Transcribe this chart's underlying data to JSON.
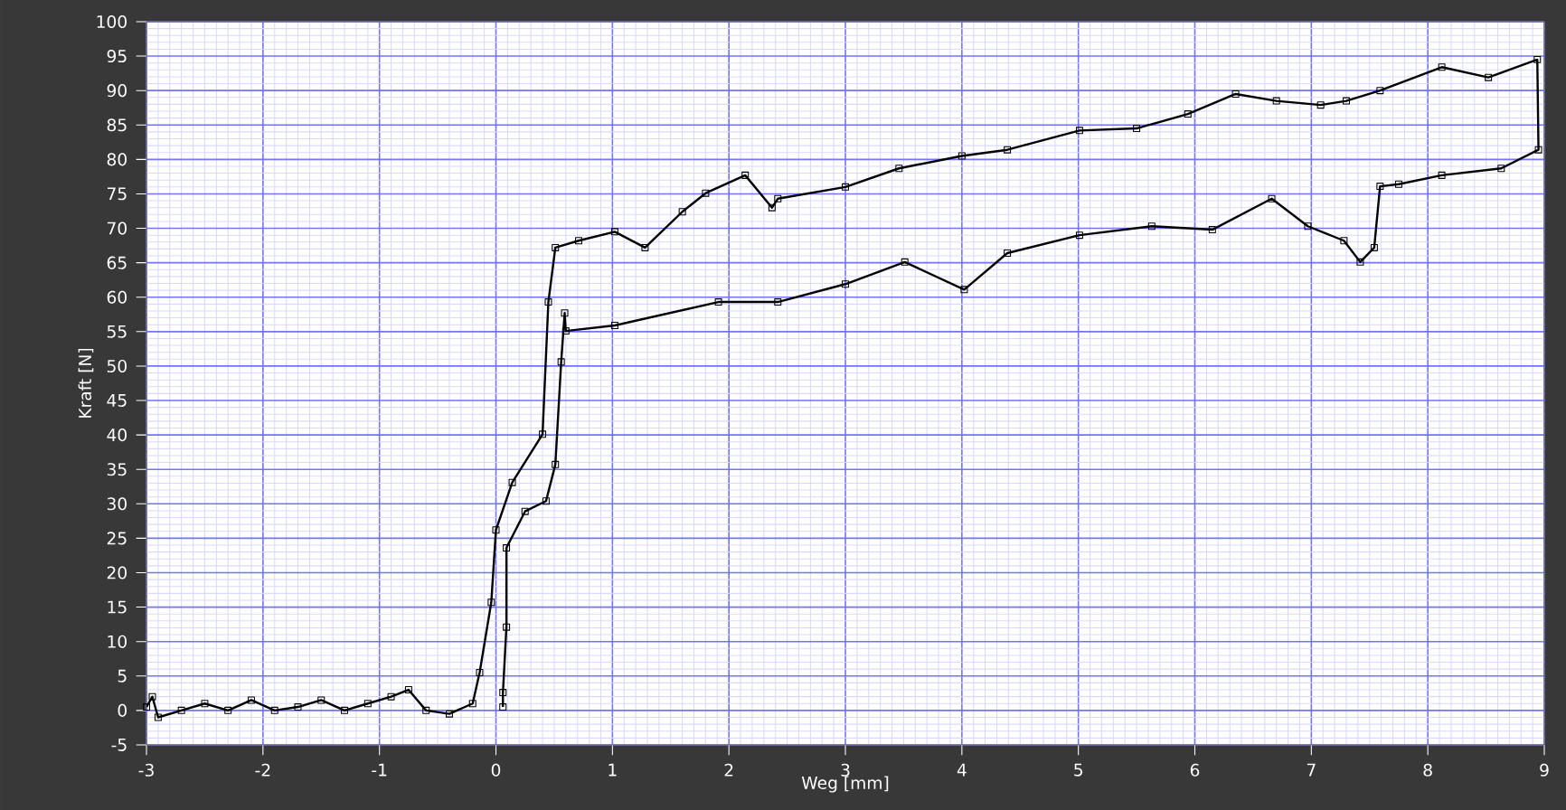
{
  "chart_data": {
    "type": "line",
    "xlabel": "Weg [mm]",
    "ylabel": "Kraft [N]",
    "xlim": [
      -3,
      9
    ],
    "ylim": [
      -5,
      100
    ],
    "xticks": [
      -3,
      -2,
      -1,
      0,
      1,
      2,
      3,
      4,
      5,
      6,
      7,
      8,
      9
    ],
    "yticks": [
      -5,
      0,
      5,
      10,
      15,
      20,
      25,
      30,
      35,
      40,
      45,
      50,
      55,
      60,
      65,
      70,
      75,
      80,
      85,
      90,
      95,
      100
    ],
    "grid": true,
    "marker": "square",
    "line_style": "solid",
    "series": [
      {
        "color": "#000000",
        "x": [
          -3,
          -2.95,
          -2.9,
          -2.7,
          -2.5,
          -2.3,
          -2.1,
          -1.9,
          -1.7,
          -1.5,
          -1.3,
          -1.1,
          -0.9,
          -0.75,
          -0.6,
          -0.4,
          -0.2,
          -0.14,
          -0.04,
          0.0,
          0.14,
          0.4,
          0.45,
          0.51,
          0.71,
          1.02,
          1.28,
          1.6,
          1.8,
          2.14,
          2.37,
          2.42,
          3.0,
          3.46,
          4.0,
          4.39,
          5.01,
          5.5,
          5.94,
          6.35,
          6.7,
          7.08,
          7.3,
          7.59,
          8.12,
          8.52,
          8.94,
          8.95,
          8.63,
          8.12,
          7.75,
          7.59,
          7.54,
          7.42,
          7.28,
          6.97,
          6.66,
          6.15,
          5.63,
          5.01,
          4.39,
          4.02,
          3.51,
          3.0,
          2.42,
          1.91,
          1.02,
          0.6,
          0.59,
          0.56,
          0.51,
          0.43,
          0.25,
          0.09,
          0.09,
          0.06,
          0.06
        ],
        "values": [
          0.5,
          2,
          -1,
          0,
          1,
          0,
          1.5,
          0,
          0.5,
          1.5,
          0,
          1,
          2,
          3,
          0,
          -0.5,
          1,
          5.5,
          15.7,
          26.2,
          33.1,
          40.1,
          59.3,
          67.2,
          68.2,
          69.5,
          67.2,
          72.4,
          75.1,
          77.7,
          73,
          74.3,
          76,
          78.7,
          80.5,
          81.4,
          84.2,
          84.5,
          86.6,
          89.5,
          88.5,
          87.9,
          88.5,
          90,
          93.4,
          91.9,
          94.5,
          81.4,
          78.7,
          77.7,
          76.4,
          76.1,
          67.2,
          65.1,
          68.2,
          70.3,
          74.3,
          69.8,
          70.3,
          69,
          66.4,
          61.1,
          65.1,
          61.9,
          59.3,
          59.3,
          55.9,
          55.1,
          57.7,
          50.6,
          35.7,
          30.4,
          28.9,
          23.6,
          12.1,
          2.6,
          0.5
        ]
      }
    ]
  }
}
